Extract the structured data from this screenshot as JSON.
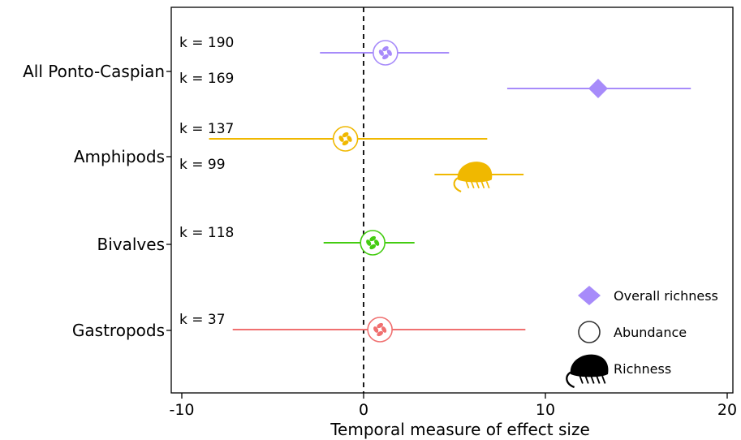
{
  "chart_data": {
    "type": "forest",
    "xlabel": "Temporal measure of effect size",
    "xlim": [
      -10.5,
      20.5
    ],
    "xticks": [
      -10,
      0,
      10,
      20
    ],
    "xtick_labels": [
      "-10",
      "0",
      "10",
      "20"
    ],
    "reference_line": 0,
    "groups": [
      "All Ponto-Caspian",
      "Amphipods",
      "Bivalves",
      "Gastropods"
    ],
    "estimates": [
      {
        "group": "All Ponto-Caspian",
        "measure": "Abundance",
        "k_label": "k = 190",
        "estimate": 1.2,
        "ci": [
          -2.4,
          4.7
        ],
        "color": "#A78BFA",
        "shape": "bivalve-circle"
      },
      {
        "group": "All Ponto-Caspian",
        "measure": "Overall richness",
        "k_label": "k = 169",
        "estimate": 12.9,
        "ci": [
          7.9,
          18.0
        ],
        "color": "#A78BFA",
        "shape": "diamond"
      },
      {
        "group": "Amphipods",
        "measure": "Abundance",
        "k_label": "k = 137",
        "estimate": -1.0,
        "ci": [
          -8.5,
          6.8
        ],
        "color": "#F0B800",
        "shape": "amphipod-circle"
      },
      {
        "group": "Amphipods",
        "measure": "Richness",
        "k_label": "k = 99",
        "estimate": 6.2,
        "ci": [
          3.9,
          8.8
        ],
        "color": "#F0B800",
        "shape": "amphipod"
      },
      {
        "group": "Bivalves",
        "measure": "Abundance",
        "k_label": "k = 118",
        "estimate": 0.5,
        "ci": [
          -2.2,
          2.8
        ],
        "color": "#44CC11",
        "shape": "bivalve-circle"
      },
      {
        "group": "Gastropods",
        "measure": "Abundance",
        "k_label": "k = 37",
        "estimate": 0.9,
        "ci": [
          -7.2,
          8.9
        ],
        "color": "#F07070",
        "shape": "gastropod-circle"
      }
    ],
    "legend": {
      "placement": "bottom-right",
      "items": [
        {
          "label": "Overall richness",
          "shape": "diamond",
          "color": "#A78BFA"
        },
        {
          "label": "Abundance",
          "shape": "circle",
          "color": "#333333"
        },
        {
          "label": "Richness",
          "shape": "amphipod",
          "color": "#000000"
        }
      ]
    },
    "grid": false
  }
}
